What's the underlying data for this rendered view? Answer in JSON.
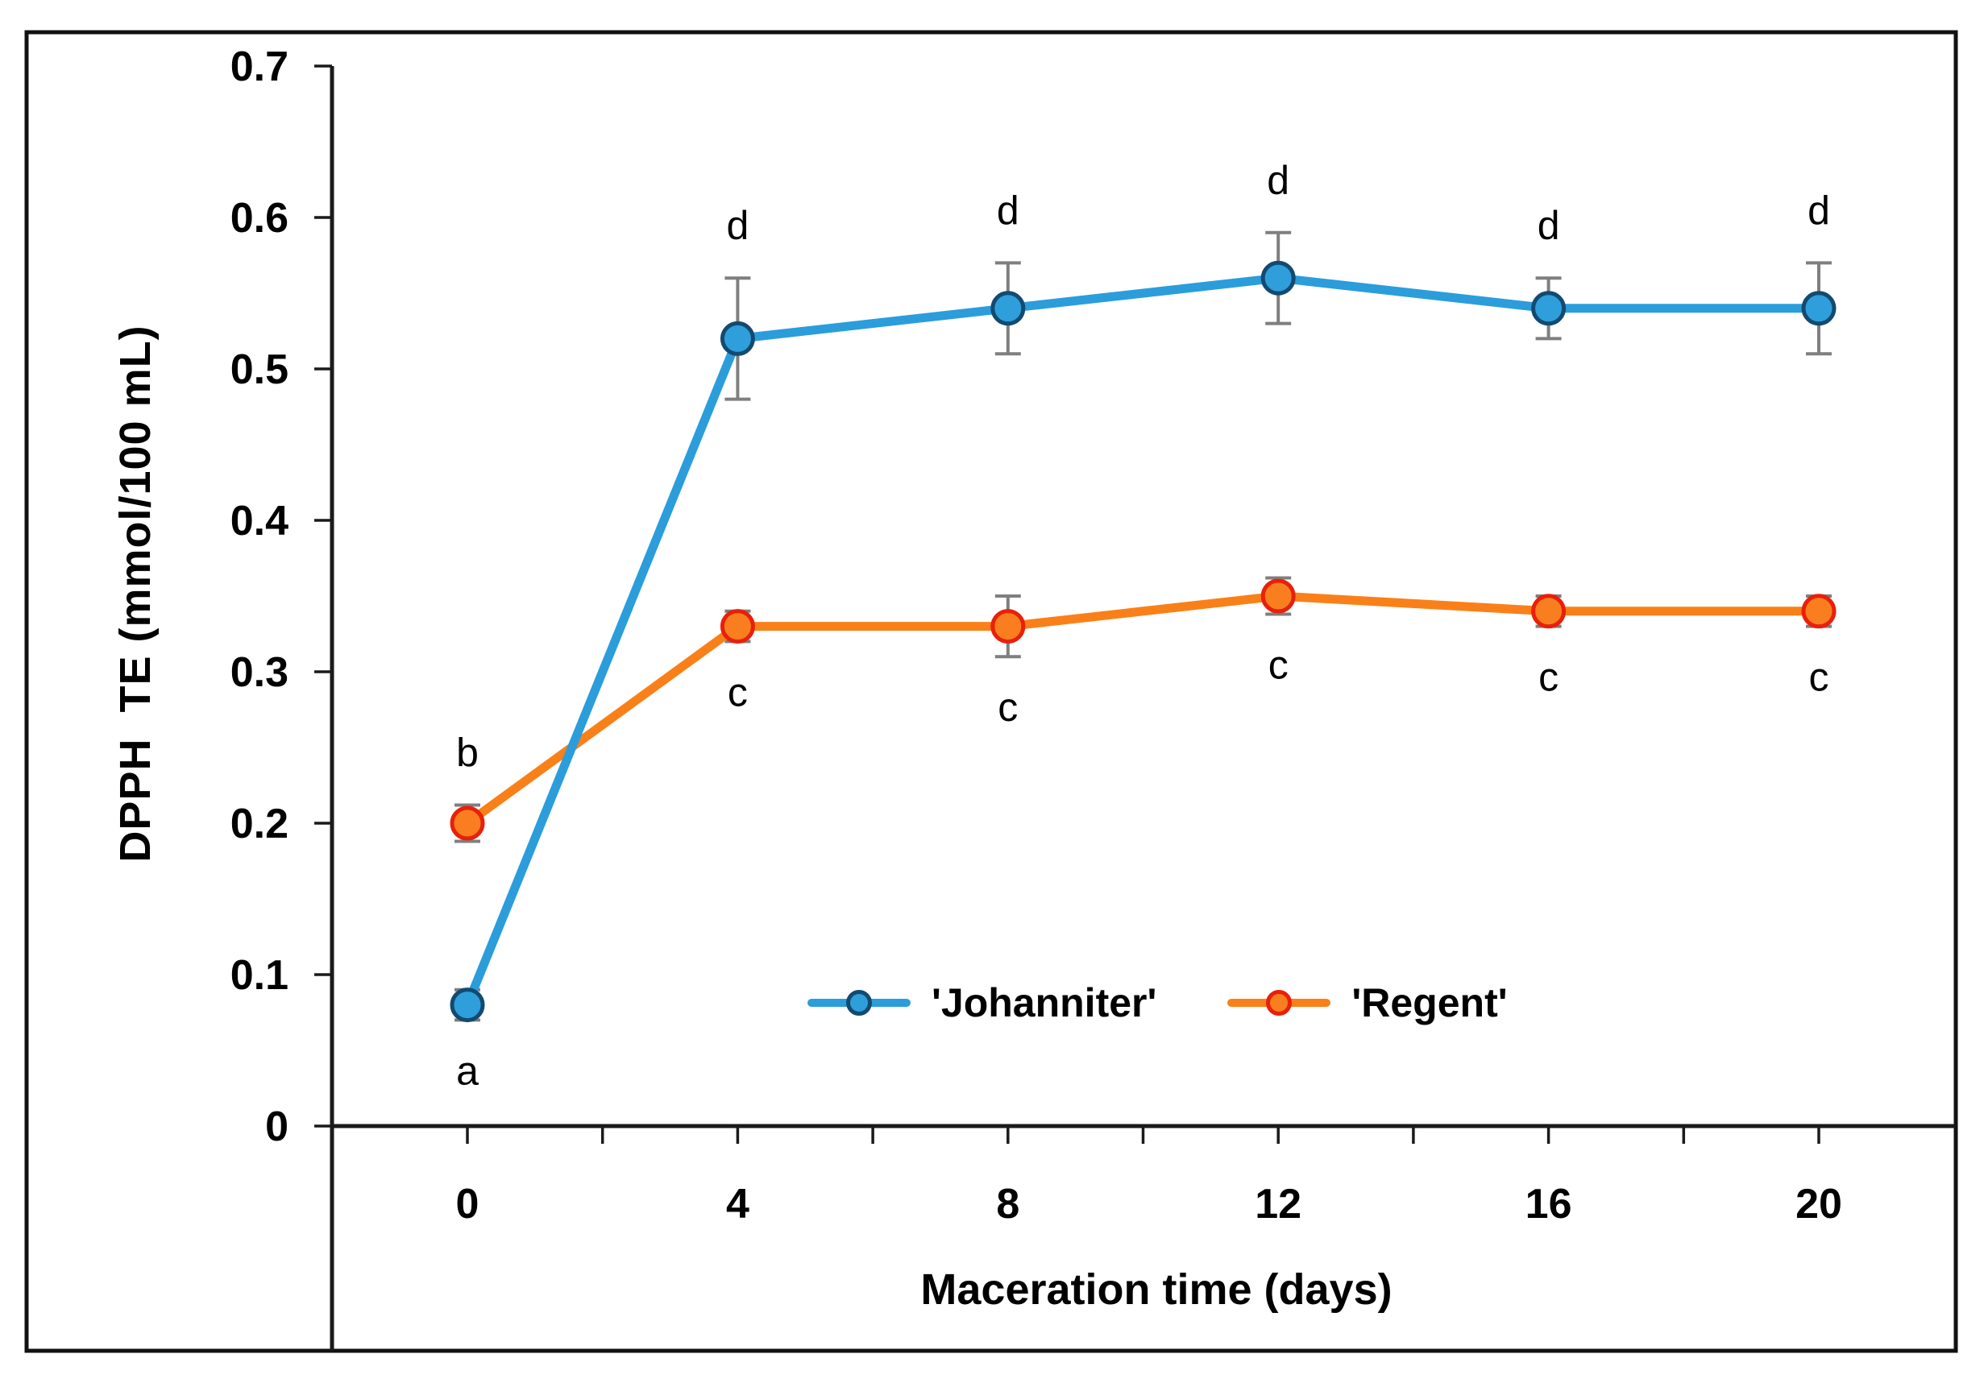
{
  "figure": {
    "background": "#ffffff",
    "frame_color": "#111111"
  },
  "chart_data": {
    "type": "line",
    "title": "",
    "xlabel": "Maceration time (days)",
    "ylabel": "DPPH  TE (mmol/100 mL)",
    "x": [
      0,
      4,
      8,
      12,
      16,
      20
    ],
    "xtick_labels": [
      "0",
      "4",
      "8",
      "12",
      "16",
      "20"
    ],
    "xticks_minor_step": 2,
    "xlim_days": [
      -2,
      22
    ],
    "ylim": [
      0,
      0.7
    ],
    "ytick_step": 0.1,
    "ytick_labels": [
      "0",
      "0.1",
      "0.2",
      "0.3",
      "0.4",
      "0.5",
      "0.6",
      "0.7"
    ],
    "grid": false,
    "legend_position": "inside-bottom-center",
    "series": [
      {
        "name": "'Johanniter'",
        "values": [
          0.08,
          0.52,
          0.54,
          0.56,
          0.54,
          0.54
        ],
        "errors": [
          0.01,
          0.04,
          0.03,
          0.03,
          0.02,
          0.03
        ],
        "point_labels": [
          "a",
          "d",
          "d",
          "d",
          "d",
          "d"
        ],
        "label_side": [
          "below",
          "above",
          "above",
          "above",
          "above",
          "above"
        ],
        "line_color": "#2B9DDB",
        "marker_fill": "#2E9FDA",
        "marker_border": "#134A70"
      },
      {
        "name": "'Regent'",
        "values": [
          0.2,
          0.33,
          0.33,
          0.35,
          0.34,
          0.34
        ],
        "errors": [
          0.012,
          0.01,
          0.02,
          0.012,
          0.01,
          0.01
        ],
        "point_labels": [
          "b",
          "c",
          "c",
          "c",
          "c",
          "c"
        ],
        "label_side": [
          "above",
          "below",
          "below",
          "below",
          "below",
          "below"
        ],
        "line_color": "#F98019",
        "marker_fill": "#F97E1F",
        "marker_border": "#E8200A"
      }
    ],
    "error_bar_color": "#7F7F7F",
    "axis_color": "#1a1a1a",
    "text_color": "#000000"
  }
}
